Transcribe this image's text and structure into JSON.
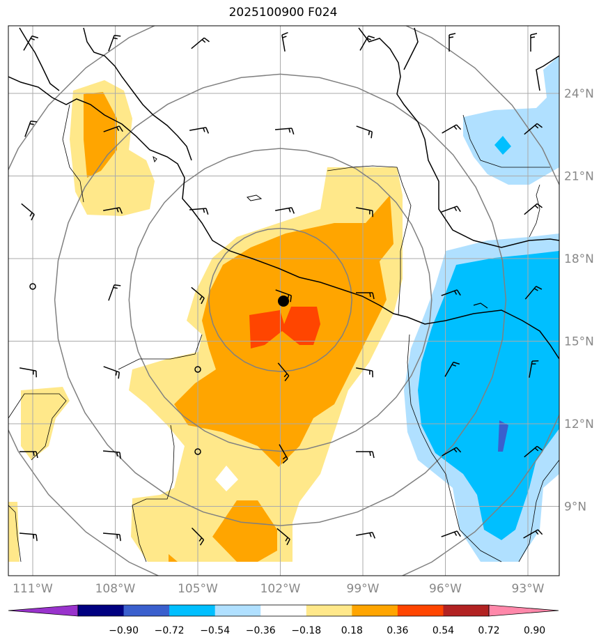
{
  "title": "2025100900 F024",
  "map": {
    "lon_range": [
      -112,
      -92
    ],
    "lat_range": [
      7,
      27
    ],
    "center_marker": {
      "lon": -102,
      "lat": 16.5
    },
    "lon_ticks": [
      {
        "value": -111,
        "label": "111°W"
      },
      {
        "value": -108,
        "label": "108°W"
      },
      {
        "value": -105,
        "label": "105°W"
      },
      {
        "value": -102,
        "label": "102°W"
      },
      {
        "value": -99,
        "label": "99°W"
      },
      {
        "value": -96,
        "label": "96°W"
      },
      {
        "value": -93,
        "label": "93°W"
      }
    ],
    "lat_ticks": [
      {
        "value": 24,
        "label": "24°N"
      },
      {
        "value": 21,
        "label": "21°N"
      },
      {
        "value": 18,
        "label": "18°N"
      },
      {
        "value": 15,
        "label": "15°N"
      },
      {
        "value": 12,
        "label": "12°N"
      },
      {
        "value": 9,
        "label": "9°N"
      }
    ],
    "range_rings_deg": [
      2.6,
      5.5,
      8.2,
      11
    ]
  },
  "colorbar": {
    "colors": [
      "#9933cc",
      "#000080",
      "#3a5fcd",
      "#00bfff",
      "#b0e0ff",
      "#ffffff",
      "#ffe88a",
      "#ffa500",
      "#ff4500",
      "#b22222",
      "#ff88aa"
    ],
    "labels": [
      "−0.90",
      "−0.72",
      "−0.54",
      "−0.36",
      "−0.18",
      "0.18",
      "0.36",
      "0.54",
      "0.72",
      "0.90"
    ]
  },
  "colors": {
    "pos_light": "#ffe88a",
    "pos_mid": "#ffa500",
    "pos_high": "#ff4500",
    "neg_light": "#b0e0ff",
    "neg_mid": "#00bfff",
    "neg_high": "#3a5fcd",
    "grid": "#aaaaaa",
    "ring": "#808080"
  }
}
